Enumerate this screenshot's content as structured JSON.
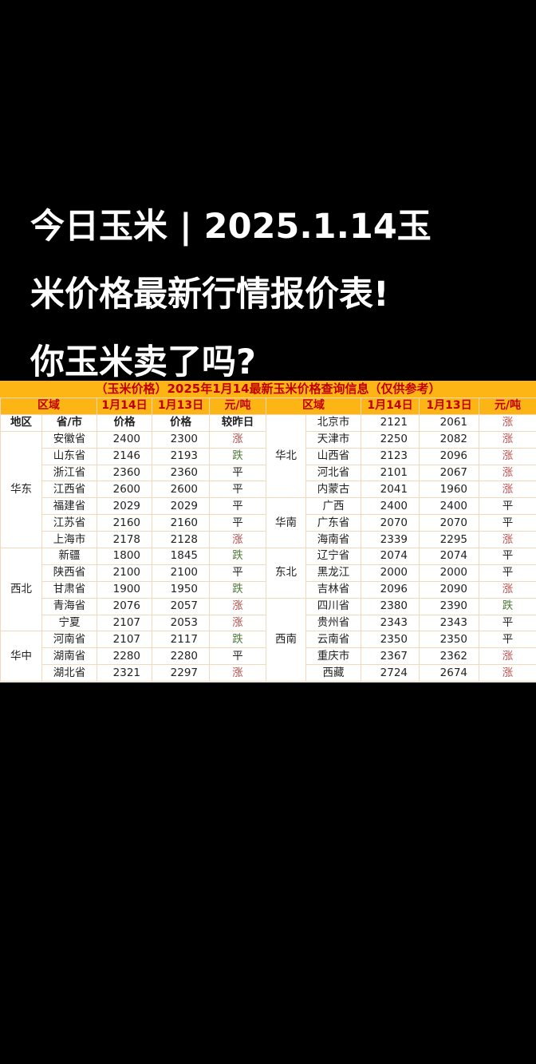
{
  "headline": {
    "lines": [
      "今日玉米 | 2025.1.14玉",
      "米价格最新行情报价表!",
      "你玉米卖了吗?"
    ]
  },
  "table": {
    "title": "（玉米价格）2025年1月14最新玉米价格查询信息（仅供参考）",
    "header": [
      "区域",
      "1月14日",
      "1月13日",
      "元/吨"
    ],
    "labels": [
      "地区",
      "省/市",
      "价格",
      "价格",
      "较昨日"
    ],
    "colors": {
      "header_bg": "#fdb515",
      "header_text": "#c00000",
      "up": "#c0504d",
      "down": "#4f7a3a"
    },
    "left_groups": [
      {
        "region": "华东",
        "rows": [
          [
            "安徽省",
            "2400",
            "2300",
            "涨"
          ],
          [
            "山东省",
            "2146",
            "2193",
            "跌"
          ],
          [
            "浙江省",
            "2360",
            "2360",
            "平"
          ],
          [
            "江西省",
            "2600",
            "2600",
            "平"
          ],
          [
            "福建省",
            "2029",
            "2029",
            "平"
          ],
          [
            "江苏省",
            "2160",
            "2160",
            "平"
          ],
          [
            "上海市",
            "2178",
            "2128",
            "涨"
          ]
        ]
      },
      {
        "region": "西北",
        "rows": [
          [
            "新疆",
            "1800",
            "1845",
            "跌"
          ],
          [
            "陕西省",
            "2100",
            "2100",
            "平"
          ],
          [
            "甘肃省",
            "1900",
            "1950",
            "跌"
          ],
          [
            "青海省",
            "2076",
            "2057",
            "涨"
          ],
          [
            "宁夏",
            "2107",
            "2053",
            "涨"
          ]
        ]
      },
      {
        "region": "华中",
        "rows": [
          [
            "河南省",
            "2107",
            "2117",
            "跌"
          ],
          [
            "湖南省",
            "2280",
            "2280",
            "平"
          ],
          [
            "湖北省",
            "2321",
            "2297",
            "涨"
          ]
        ]
      }
    ],
    "right_groups": [
      {
        "region": "华北",
        "rows": [
          [
            "北京市",
            "2121",
            "2061",
            "涨"
          ],
          [
            "天津市",
            "2250",
            "2082",
            "涨"
          ],
          [
            "山西省",
            "2123",
            "2096",
            "涨"
          ],
          [
            "河北省",
            "2101",
            "2067",
            "涨"
          ],
          [
            "内蒙古",
            "2041",
            "1960",
            "涨"
          ]
        ]
      },
      {
        "region": "华南",
        "rows": [
          [
            "广西",
            "2400",
            "2400",
            "平"
          ],
          [
            "广东省",
            "2070",
            "2070",
            "平"
          ],
          [
            "海南省",
            "2339",
            "2295",
            "涨"
          ]
        ]
      },
      {
        "region": "东北",
        "rows": [
          [
            "辽宁省",
            "2074",
            "2074",
            "平"
          ],
          [
            "黑龙江",
            "2000",
            "2000",
            "平"
          ],
          [
            "吉林省",
            "2096",
            "2090",
            "涨"
          ]
        ]
      },
      {
        "region": "西南",
        "rows": [
          [
            "四川省",
            "2380",
            "2390",
            "跌"
          ],
          [
            "贵州省",
            "2343",
            "2343",
            "平"
          ],
          [
            "云南省",
            "2350",
            "2350",
            "平"
          ],
          [
            "重庆市",
            "2367",
            "2362",
            "涨"
          ],
          [
            "西藏",
            "2724",
            "2674",
            "涨"
          ]
        ]
      }
    ]
  }
}
